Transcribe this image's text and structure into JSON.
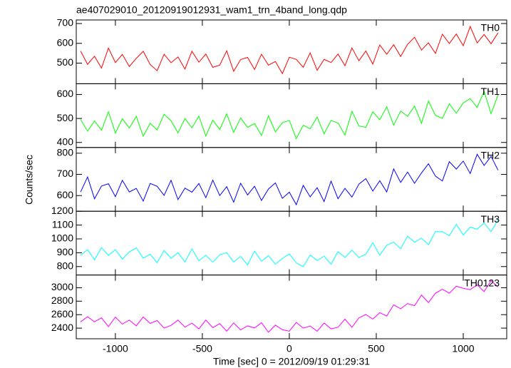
{
  "chart_data": {
    "type": "line",
    "title": "ae407029010_20120919012931_wam1_trn_4band_long.qdp",
    "y_label": "Counts/sec",
    "x_label": "Time [sec] 0 = 2012/09/19 01:29:31",
    "x": [
      -1200,
      -1160,
      -1120,
      -1080,
      -1040,
      -1000,
      -960,
      -920,
      -880,
      -840,
      -800,
      -760,
      -720,
      -680,
      -640,
      -600,
      -560,
      -520,
      -480,
      -440,
      -400,
      -360,
      -320,
      -280,
      -240,
      -200,
      -160,
      -120,
      -80,
      -40,
      0,
      40,
      80,
      120,
      160,
      200,
      240,
      280,
      320,
      360,
      400,
      440,
      480,
      520,
      560,
      600,
      640,
      680,
      720,
      760,
      800,
      840,
      880,
      920,
      960,
      1000,
      1040,
      1080,
      1120,
      1160,
      1200
    ],
    "xlim": [
      -1225,
      1250
    ],
    "xticks": [
      -1000,
      -500,
      0,
      500,
      1000
    ],
    "panels": [
      {
        "name": "TH0",
        "color": "#ff0000",
        "ylim": [
          396,
          718
        ],
        "yticks": [
          500,
          600,
          700
        ],
        "values": [
          561,
          494,
          535,
          475,
          576,
          503,
          544,
          483,
          524,
          560,
          493,
          462,
          545,
          502,
          531,
          470,
          560,
          505,
          546,
          479,
          490,
          562,
          459,
          518,
          529,
          468,
          545,
          490,
          508,
          447,
          530,
          519,
          479,
          552,
          464,
          519,
          503,
          546,
          487,
          577,
          512,
          561,
          495,
          592,
          545,
          593,
          534,
          595,
          631,
          566,
          603,
          549,
          646,
          599,
          647,
          588,
          685,
          602,
          645,
          598,
          653
        ]
      },
      {
        "name": "TH1",
        "color": "#00ff00",
        "ylim": [
          379,
          645
        ],
        "yticks": [
          400,
          500,
          600
        ],
        "values": [
          496,
          447,
          490,
          451,
          528,
          439,
          499,
          460,
          509,
          426,
          480,
          452,
          518,
          490,
          440,
          500,
          461,
          510,
          427,
          493,
          454,
          519,
          442,
          502,
          463,
          479,
          429,
          511,
          444,
          482,
          492,
          416,
          472,
          457,
          506,
          436,
          492,
          481,
          431,
          530,
          469,
          463,
          528,
          495,
          549,
          472,
          531,
          509,
          552,
          480,
          573,
          513,
          501,
          561,
          522,
          565,
          583,
          546,
          613,
          520,
          598
        ]
      },
      {
        "name": "TH2",
        "color": "#0000ff",
        "ylim": [
          526,
          827
        ],
        "yticks": [
          600,
          700,
          800
        ],
        "values": [
          617,
          688,
          585,
          645,
          656,
          595,
          672,
          617,
          634,
          574,
          657,
          644,
          601,
          672,
          581,
          635,
          616,
          657,
          590,
          673,
          600,
          642,
          569,
          658,
          603,
          644,
          577,
          631,
          660,
          587,
          616,
          557,
          648,
          594,
          637,
          572,
          668,
          585,
          634,
          593,
          654,
          680,
          621,
          670,
          617,
          726,
          662,
          711,
          658,
          707,
          750,
          692,
          669,
          760,
          725,
          763,
          704,
          795,
          742,
          785,
          720
        ]
      },
      {
        "name": "TH3",
        "color": "#00ffff",
        "ylim": [
          739,
          1200
        ],
        "yticks": [
          800,
          900,
          1000,
          1100,
          1200
        ],
        "values": [
          882,
          922,
          849,
          937,
          881,
          922,
          854,
          906,
          935,
          861,
          889,
          828,
          916,
          860,
          901,
          833,
          927,
          842,
          882,
          832,
          885,
          901,
          833,
          874,
          812,
          912,
          839,
          879,
          817,
          858,
          892,
          827,
          799,
          884,
          844,
          875,
          817,
          908,
          866,
          919,
          865,
          889,
          972,
          882,
          954,
          977,
          929,
          1019,
          976,
          1006,
          958,
          1053,
          1053,
          1023,
          1106,
          1028,
          1085,
          1070,
          1115,
          1052,
          1139
        ]
      },
      {
        "name": "TH0123",
        "color": "#ff00ff",
        "ylim": [
          2242,
          3189
        ],
        "yticks": [
          2400,
          2600,
          2800,
          3000
        ],
        "values": [
          2493,
          2570,
          2494,
          2553,
          2423,
          2563,
          2460,
          2519,
          2434,
          2565,
          2471,
          2512,
          2400,
          2441,
          2518,
          2415,
          2474,
          2389,
          2520,
          2408,
          2467,
          2355,
          2477,
          2374,
          2433,
          2402,
          2479,
          2340,
          2444,
          2377,
          2355,
          2485,
          2400,
          2431,
          2354,
          2475,
          2390,
          2412,
          2534,
          2412,
          2552,
          2602,
          2534,
          2629,
          2580,
          2746,
          2688,
          2765,
          2733,
          2891,
          2779,
          2918,
          2977,
          2919,
          3022,
          2991,
          2972,
          3043,
          2943,
          3104,
          3013
        ]
      }
    ]
  }
}
